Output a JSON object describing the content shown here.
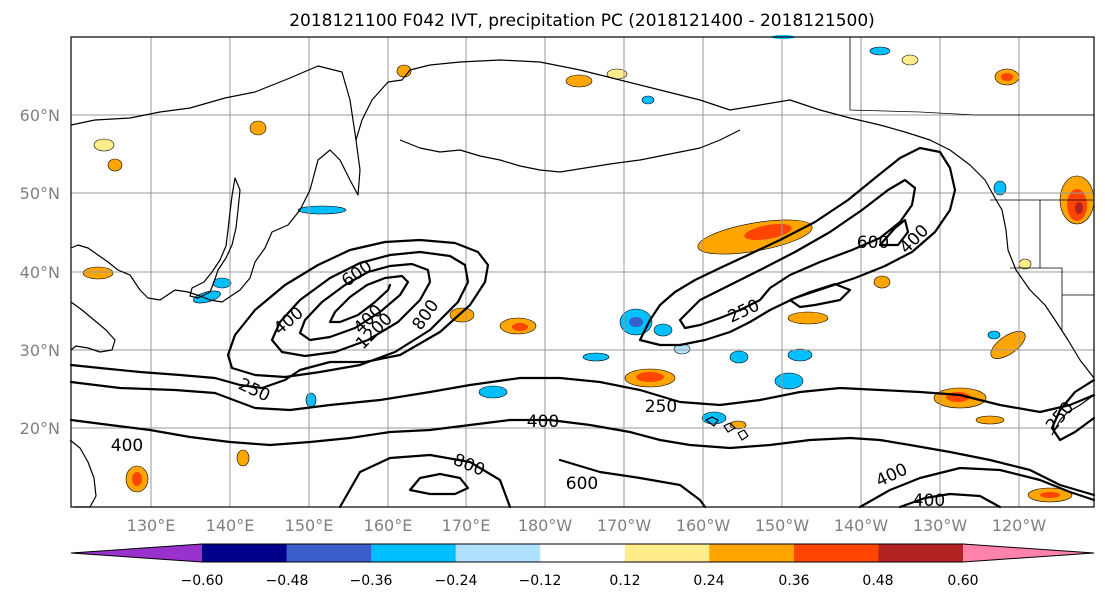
{
  "title": "2018121100 F042 IVT, precipitation PC (2018121400 - 2018121500)",
  "axes": {
    "lat_ticks": [
      "60°N",
      "50°N",
      "40°N",
      "30°N",
      "20°N"
    ],
    "lon_ticks": [
      "130°E",
      "140°E",
      "150°E",
      "160°E",
      "170°E",
      "180°W",
      "170°W",
      "160°W",
      "150°W",
      "140°W",
      "130°W",
      "120°W"
    ]
  },
  "ivt_contour_labels": [
    "600",
    "400",
    "800",
    "400",
    "1200",
    "250",
    "400",
    "800",
    "600",
    "400",
    "250",
    "600",
    "400",
    "250",
    "400",
    "400",
    "250"
  ],
  "colorbar": {
    "ticks": [
      "−0.60",
      "−0.48",
      "−0.36",
      "−0.24",
      "−0.12",
      "0.12",
      "0.24",
      "0.36",
      "0.48",
      "0.60"
    ],
    "colors": [
      "#9932CC",
      "#00008B",
      "#3A5FCD",
      "#00BFFF",
      "#B0E2FF",
      "#FFFFFF",
      "#FFEC8B",
      "#FFA500",
      "#FF4500",
      "#B22222",
      "#FF82AB"
    ]
  }
}
